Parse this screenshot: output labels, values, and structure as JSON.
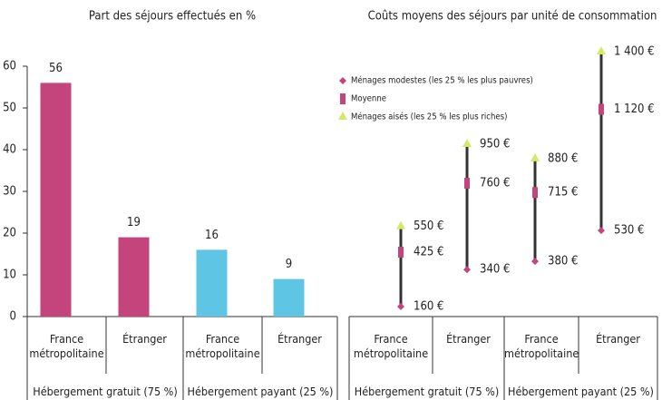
{
  "chart_data": [
    {
      "type": "bar",
      "title": "Part des séjours effectués en %",
      "categories": [
        "France métropolitaine",
        "Étranger",
        "France métropolitaine",
        "Étranger"
      ],
      "groups": [
        "Hébergement gratuit (75 %)",
        "Hébergement payant (25 %)"
      ],
      "values": [
        56,
        19,
        16,
        9
      ],
      "colors": [
        "#c4447c",
        "#c4447c",
        "#5ec6e4",
        "#5ec6e4"
      ],
      "ylim": [
        0,
        60
      ],
      "yticks": [
        0,
        10,
        20,
        30,
        40,
        50,
        60
      ]
    },
    {
      "type": "range",
      "title": "Coûts moyens des séjours par unité de consommation",
      "categories": [
        "France métropolitaine",
        "Étranger",
        "France métropolitaine",
        "Étranger"
      ],
      "groups": [
        "Hébergement gratuit (75 %)",
        "Hébergement payant (25 %)"
      ],
      "series": [
        {
          "name": "Ménages modestes (les 25 % les plus pauvres)",
          "color": "#c4447c",
          "marker": "diamond",
          "values": [
            160,
            340,
            380,
            530
          ],
          "value_labels": [
            "160 €",
            "340 €",
            "380 €",
            "530 €"
          ]
        },
        {
          "name": "Moyenne",
          "color": "#c4447c",
          "marker": "rect",
          "values": [
            425,
            760,
            715,
            1120
          ],
          "value_labels": [
            "425 €",
            "760 €",
            "715 €",
            "1 120 €"
          ]
        },
        {
          "name": "Ménages aisés (les 25 % les plus riches)",
          "color": "#d6e86a",
          "marker": "triangle",
          "values": [
            550,
            950,
            880,
            1400
          ],
          "value_labels": [
            "550 €",
            "950 €",
            "880 €",
            "1 400 €"
          ]
        }
      ]
    }
  ]
}
